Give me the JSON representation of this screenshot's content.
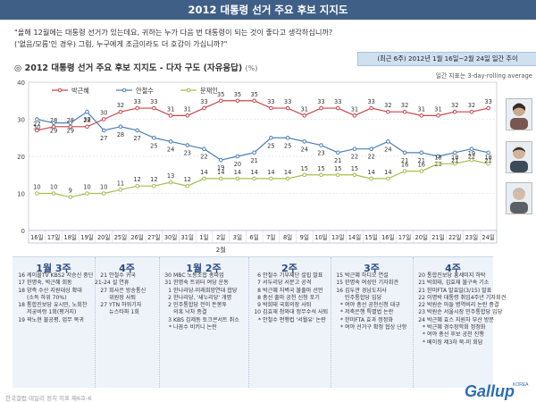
{
  "page": {
    "banner": "2012 대통령 선거 주요 후보 지지도",
    "question_line1": "\"올해 12월에는 대통령 선거가 있는데요, 귀하는 누가 다음 번 대통령이 되는 것이 좋다고 생각하십니까?",
    "question_line2": "('없음/모름'인 경우) 그럼, 누구에게 조금이라도 더 호감이 가십니까?\"",
    "chart_title": "◎ 2012 대통령 선거 주요 후보 지지도 - 다자 구도 (자유응답)",
    "chart_unit": "(%)",
    "period_box": "(최근 6주) 2012년 1월 16일~2월 24일 일간 추이",
    "period_note": "일간 지표는 3-day-rolling average",
    "footer": "한국갤럽 데일리 정치 지표 제6호-6"
  },
  "logo": {
    "text": "Gallup",
    "sub": "KOREA"
  },
  "colors": {
    "park": "#c8464a",
    "ahn": "#4a7fb5",
    "moon": "#a2bf4e",
    "banner": "#3f5f86"
  },
  "chart_data": {
    "type": "line",
    "title": "2012 대통령 선거 주요 후보 지지도 - 다자 구도 (자유응답)",
    "ylabel": "",
    "ylim": [
      0,
      40
    ],
    "yticks": [
      0,
      10,
      20,
      30,
      40
    ],
    "x": [
      "16일",
      "17일",
      "18일",
      "19일",
      "20일",
      "25일",
      "26일",
      "27일",
      "30일",
      "31일",
      "1일",
      "2일",
      "3일",
      "6일",
      "7일",
      "8일",
      "9일",
      "10일",
      "13일",
      "14일",
      "15일",
      "16일",
      "17일",
      "20일",
      "21일",
      "22일",
      "23일",
      "24일"
    ],
    "month_label": {
      "text": "2월",
      "from_index": 10,
      "to_index": 12
    },
    "legend": [
      "박근혜",
      "안철수",
      "문재인"
    ],
    "series": [
      {
        "name": "박근혜",
        "values": [
          27,
          28,
          28,
          28,
          30,
          32,
          33,
          33,
          31,
          31,
          33,
          35,
          35,
          35,
          33,
          33,
          31,
          33,
          33,
          31,
          33,
          32,
          32,
          31,
          31,
          32,
          32,
          33
        ]
      },
      {
        "name": "안철수",
        "values": [
          30,
          29,
          29,
          32,
          27,
          28,
          27,
          25,
          24,
          23,
          22,
          19,
          20,
          21,
          25,
          25,
          24,
          23,
          21,
          22,
          22,
          24,
          21,
          21,
          20,
          21,
          22,
          21
        ]
      },
      {
        "name": "문재인",
        "values": [
          10,
          10,
          9,
          10,
          10,
          11,
          12,
          12,
          13,
          12,
          14,
          14,
          14,
          14,
          14,
          14,
          15,
          15,
          15,
          15,
          14,
          14,
          16,
          16,
          18,
          18,
          19,
          18
        ]
      }
    ],
    "grid": true,
    "legend_position": "top-left"
  },
  "weeks": [
    {
      "label": "1월 3주",
      "events": [
        [
          "16",
          "케이블TV KBS2 저승신 중단"
        ],
        [
          "17",
          "한명숙, 박근혜 회동"
        ],
        [
          "18",
          "양측 수산 지원대상 확대"
        ],
        [
          "",
          "(소득 하위 70%)"
        ],
        [
          "18",
          "통합진보당 유시민, 노회찬"
        ],
        [
          "",
          "저궁비렁 1회(평거지)"
        ],
        [
          "19",
          "곽노현 불공평, 업무 복귀"
        ]
      ]
    },
    {
      "label": "4주",
      "events": [
        [
          "21",
          "안철수 귀국"
        ],
        [
          "21-24",
          "설 연휴"
        ],
        [
          "27",
          "회사은 방송통신"
        ],
        [
          "",
          "위원장 사퇴"
        ],
        [
          "27",
          "YTN 하워기자"
        ],
        [
          "",
          "뉴스타파 1회"
        ]
      ]
    },
    {
      "label": "1월 2주",
      "events": [
        [
          "30",
          "MBC 노동조합 총파업"
        ],
        [
          "31",
          "한명숙 트위터 여당 운동"
        ],
        [
          "1",
          "한나라당-미래희망연대 합당"
        ],
        [
          "2",
          "한나라당, '새누리당' 개명"
        ],
        [
          "2",
          "민주통합당 전이 돈봉투"
        ],
        [
          "",
          "의혹 낙차 종결"
        ],
        [
          "3",
          "KBS 김제동 토크콘서트 취소"
        ],
        [
          "*",
          "나꼼수 비키니 논란"
        ]
      ]
    },
    {
      "label": "2주",
      "events": [
        [
          "6",
          "안철수 기부재단 설립 발표"
        ],
        [
          "7",
          "서두리당 서문고 공격"
        ],
        [
          "8",
          "박근혜 처벽국 불출마 선언"
        ],
        [
          "8",
          "총선 출마 공천 신청 포기"
        ],
        [
          "9",
          "박희태 국회의장 사퇴"
        ],
        [
          "10",
          "김효재 청와대 정무수석 사퇴"
        ],
        [
          "*",
          "안철수 펀행컵 '서월유' 논란"
        ]
      ]
    },
    {
      "label": "3주",
      "events": [
        [
          "15",
          "박근혜 하디오 연설"
        ],
        [
          "15",
          "한명숙 여성민 기자회견"
        ],
        [
          "16",
          "김두관 경남도지사"
        ],
        [
          "",
          "민주통합당 입당"
        ],
        [
          "*",
          "여야 총선 공천신청 대규"
        ],
        [
          "*",
          "저축은행 특별법 논란"
        ],
        [
          "*",
          "한미FTA 효과 정정화"
        ],
        [
          "*",
          "여야 선거구 확정 협상 난항"
        ]
      ]
    },
    {
      "label": "4주",
      "events": [
        [
          "20",
          "통합진보당 홍세미지 하탁"
        ],
        [
          "21",
          "박희태, 김효재 불구속 기소"
        ],
        [
          "21",
          "한미FTA 발효일(3/15) 발표"
        ],
        [
          "22",
          "이명박 대통령 취임4주년 기자회견"
        ],
        [
          "22",
          "박원순 아들 병역비리 논란 종결"
        ],
        [
          "23",
          "박원순 서울시장 민주통합당 입당"
        ],
        [
          "24",
          "박근혜 효스 지원차 부산 방문"
        ],
        [
          "*",
          "박근혜 경수장학회 정정화"
        ],
        [
          "*",
          "여야 총선 후보 공천 진행"
        ],
        [
          "*",
          "베이징 제3차 북-미 회담"
        ]
      ]
    }
  ]
}
